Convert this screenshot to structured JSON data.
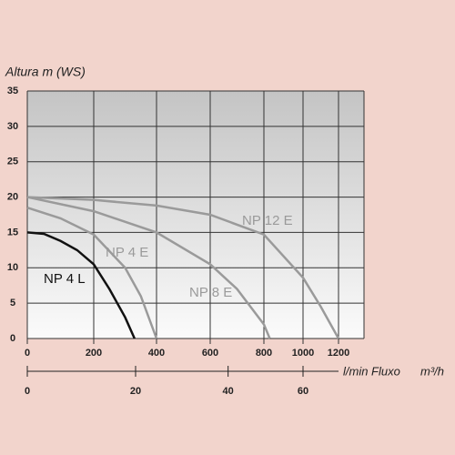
{
  "chart_data": {
    "type": "line",
    "y_label": "Altura m (WS)",
    "x_label": "l/min Fluxo",
    "x2_label": "m³/h",
    "xlim": [
      0,
      1340
    ],
    "xticks": [
      0,
      200,
      400,
      600,
      800,
      1000,
      1200
    ],
    "ylim": [
      0,
      35
    ],
    "yticks": [
      0,
      5,
      10,
      15,
      20,
      25,
      30,
      35
    ],
    "x2ticks": [
      0,
      20,
      40,
      60
    ],
    "grid": true,
    "series": [
      {
        "name": "NP 12 E",
        "color": "#9a9a9a",
        "x": [
          0,
          200,
          400,
          600,
          800,
          1000,
          1100,
          1200
        ],
        "values": [
          20,
          19.6,
          18.8,
          17.5,
          14.7,
          8.6,
          4.5,
          0
        ]
      },
      {
        "name": "NP 4 E",
        "color": "#9a9a9a",
        "x": [
          0,
          100,
          200,
          300,
          350,
          400
        ],
        "values": [
          18.5,
          17,
          14.7,
          10,
          6,
          0
        ]
      },
      {
        "name": "NP 8 E",
        "color": "#9a9a9a",
        "x": [
          0,
          200,
          400,
          600,
          700,
          800,
          830
        ],
        "values": [
          20,
          18,
          15,
          10.5,
          7,
          2,
          0
        ]
      },
      {
        "name": "NP 4 L",
        "color": "#111111",
        "x": [
          0,
          50,
          100,
          150,
          200,
          250,
          300,
          330
        ],
        "values": [
          15,
          14.8,
          13.8,
          12.5,
          10.5,
          7,
          3,
          0
        ]
      }
    ]
  }
}
